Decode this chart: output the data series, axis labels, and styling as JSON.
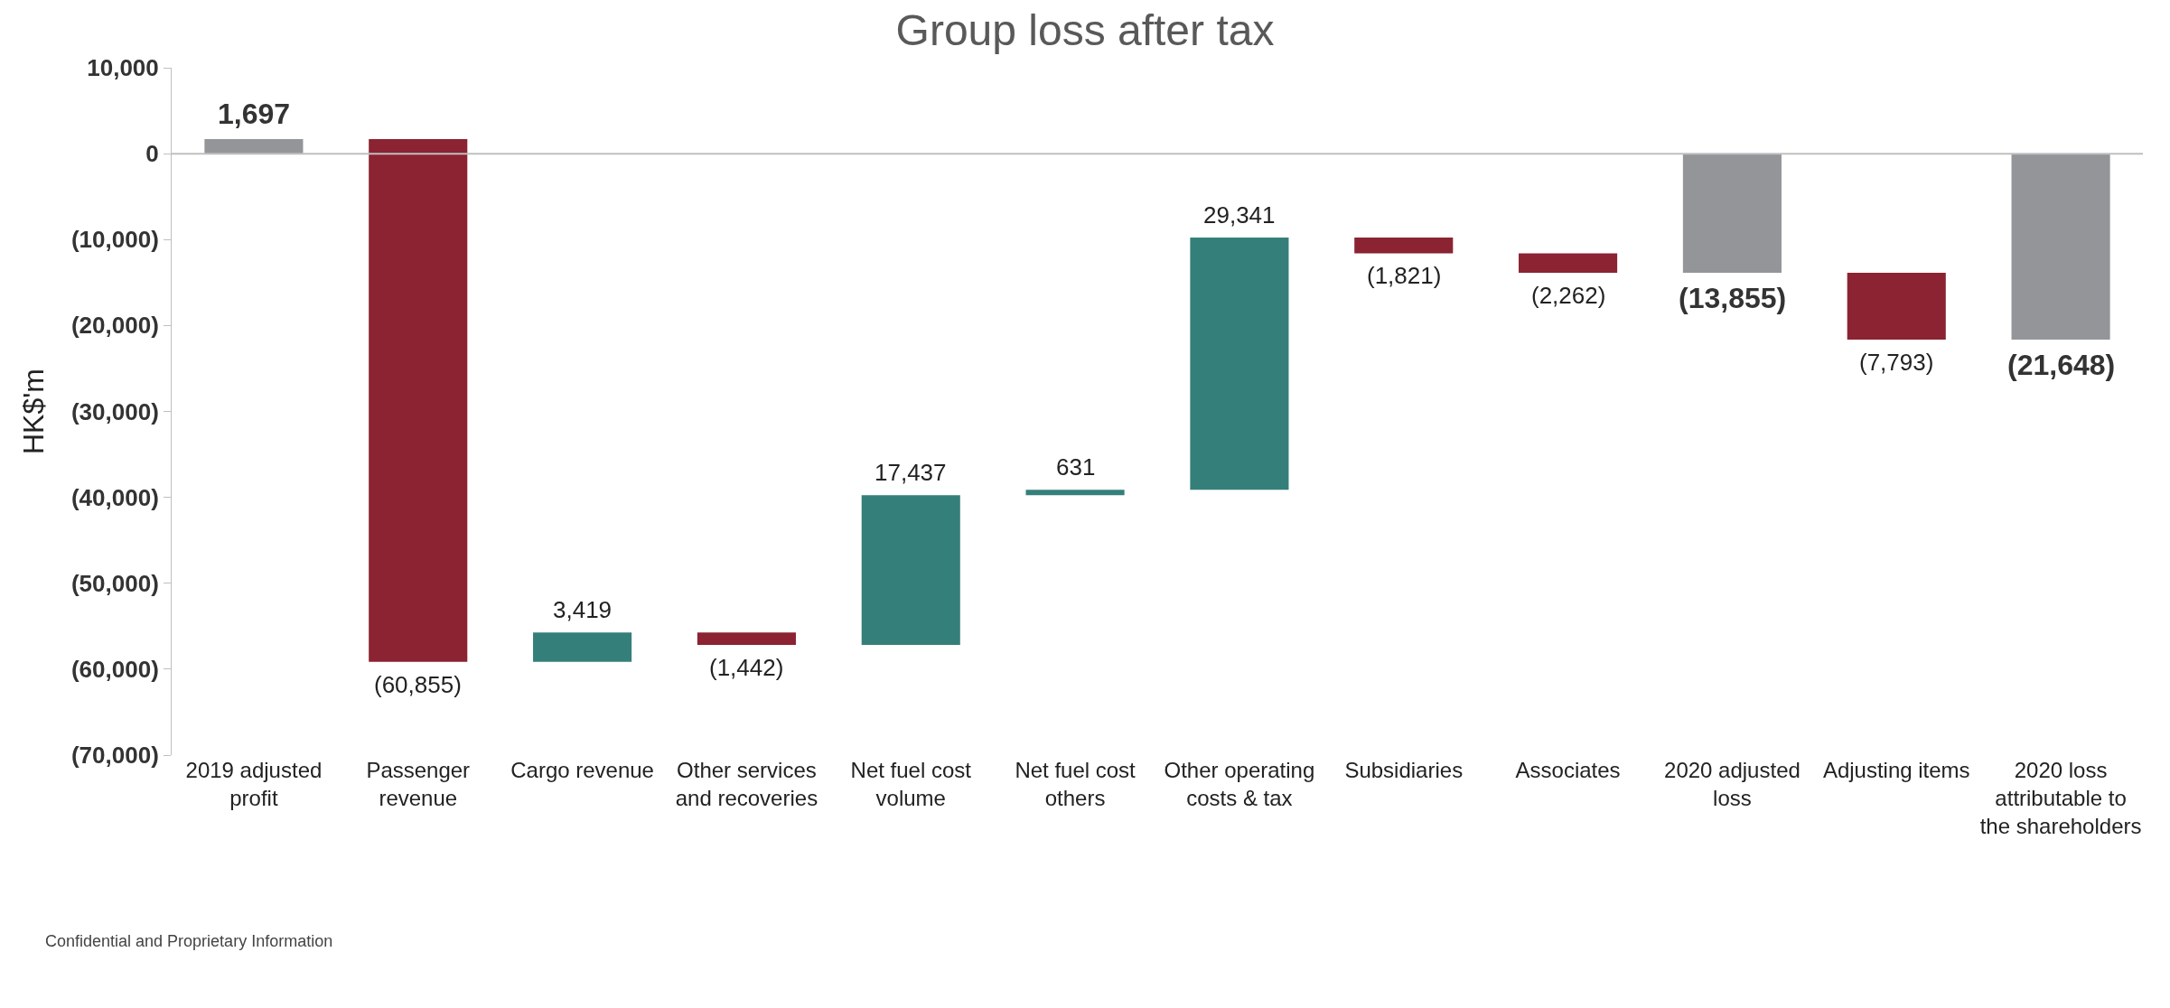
{
  "chart_data": {
    "type": "bar",
    "title": "Group loss after tax",
    "ylabel": "HK$'m",
    "categories": [
      "2019 adjusted profit",
      "Passenger revenue",
      "Cargo revenue",
      "Other services and recoveries",
      "Net fuel cost volume",
      "Net fuel cost others",
      "Other operating costs & tax",
      "Subsidiaries",
      "Associates",
      "2020 adjusted loss",
      "Adjusting items",
      "2020 loss attributable to the shareholders"
    ],
    "values": [
      1697,
      -60855,
      3419,
      -1442,
      17437,
      631,
      29341,
      -1821,
      -2262,
      -13855,
      -7793,
      -21648
    ],
    "base": [
      0,
      1697,
      -59158,
      -55739,
      -57181,
      -39744,
      -39113,
      -9772,
      -11593,
      0,
      -13855,
      0
    ],
    "colors": [
      "#939598",
      "#8b2332",
      "#357f7a",
      "#8b2332",
      "#357f7a",
      "#357f7a",
      "#357f7a",
      "#8b2332",
      "#8b2332",
      "#939598",
      "#8b2332",
      "#939598"
    ],
    "value_labels": [
      "1,697",
      "(60,855)",
      "3,419",
      "(1,442)",
      "17,437",
      "631",
      "29,341",
      "(1,821)",
      "(2,262)",
      "(13,855)",
      "(7,793)",
      "(21,648)"
    ],
    "ylim": [
      -70000,
      10000
    ],
    "yticks": [
      {
        "value": -70000,
        "label": "(70,000)"
      },
      {
        "value": -60000,
        "label": "(60,000)"
      },
      {
        "value": -50000,
        "label": "(50,000)"
      },
      {
        "value": -40000,
        "label": "(40,000)"
      },
      {
        "value": -30000,
        "label": "(30,000)"
      },
      {
        "value": -20000,
        "label": "(20,000)"
      },
      {
        "value": -10000,
        "label": "(10,000)"
      },
      {
        "value": 0,
        "label": "0"
      },
      {
        "value": 10000,
        "label": "10,000"
      }
    ],
    "grid": false,
    "ref_lines": [
      {
        "axis": "y",
        "value": 0,
        "color": "#bfbfbf"
      }
    ],
    "annotations": [
      "Confidential and Proprietary Information"
    ]
  }
}
